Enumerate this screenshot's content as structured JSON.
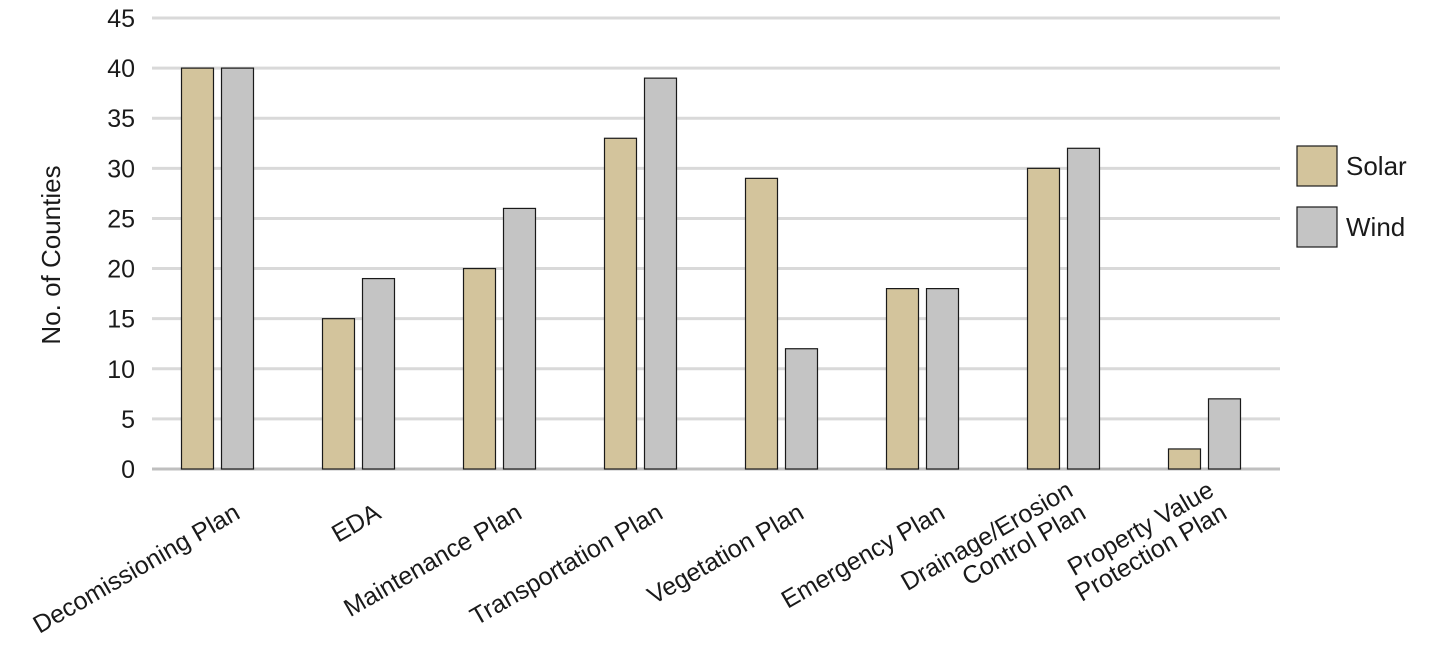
{
  "chart_data": {
    "type": "bar",
    "title": "",
    "xlabel": "",
    "ylabel": "No. of Counties",
    "ylim": [
      0,
      45
    ],
    "yticks": [
      0,
      5,
      10,
      15,
      20,
      25,
      30,
      35,
      40,
      45
    ],
    "grid": true,
    "legend_position": "right",
    "categories": [
      [
        "Decomissioning Plan"
      ],
      [
        "EDA"
      ],
      [
        "Maintenance Plan"
      ],
      [
        "Transportation Plan"
      ],
      [
        "Vegetation Plan"
      ],
      [
        "Emergency Plan"
      ],
      [
        "Drainage/Erosion",
        "Control Plan"
      ],
      [
        "Property Value",
        "Protection Plan"
      ]
    ],
    "series": [
      {
        "name": "Solar",
        "color": "#d3c49c",
        "values": [
          40,
          15,
          20,
          33,
          29,
          18,
          30,
          2
        ]
      },
      {
        "name": "Wind",
        "color": "#c4c4c4",
        "values": [
          40,
          19,
          26,
          39,
          12,
          18,
          32,
          7
        ]
      }
    ]
  }
}
